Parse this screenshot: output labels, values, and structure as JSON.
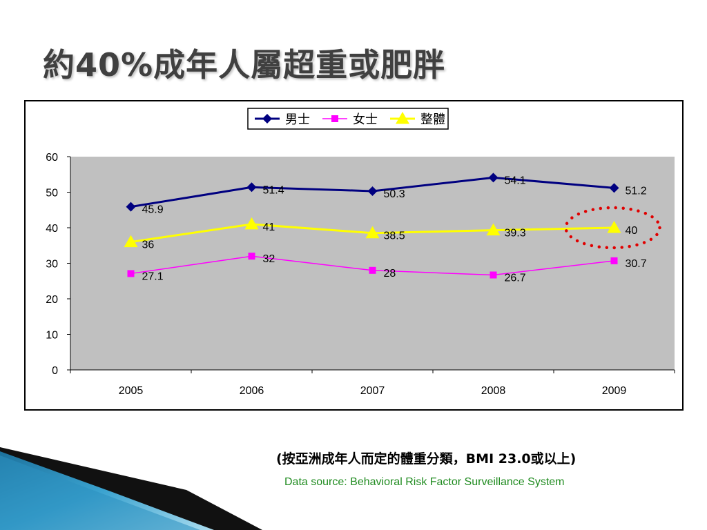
{
  "slide": {
    "title": "約40%成年人屬超重或肥胖",
    "subnote": "(按亞洲成年人而定的體重分類，BMI 23.0或以上)",
    "source": "Data source: Behavioral Risk Factor Surveillance System"
  },
  "chart_data": {
    "type": "line",
    "categories": [
      "2005",
      "2006",
      "2007",
      "2008",
      "2009"
    ],
    "ylim": [
      0,
      60
    ],
    "yticks": [
      0,
      10,
      20,
      30,
      40,
      50,
      60
    ],
    "grid": false,
    "plot_background": "#c0c0c0",
    "legend_position": "top-center",
    "series": [
      {
        "name": "男士",
        "values": [
          45.9,
          51.4,
          50.3,
          54.1,
          51.2
        ],
        "labels": [
          "45.9",
          "51.4",
          "50.3",
          "54.1",
          "51.2"
        ],
        "color": "#000080",
        "marker": "diamond"
      },
      {
        "name": "女士",
        "values": [
          27.1,
          32,
          28,
          26.7,
          30.7
        ],
        "labels": [
          "27.1",
          "32",
          "28",
          "26.7",
          "30.7"
        ],
        "color": "#ff00ff",
        "marker": "square"
      },
      {
        "name": "整體",
        "values": [
          36,
          41,
          38.5,
          39.3,
          40
        ],
        "labels": [
          "36",
          "41",
          "38.5",
          "39.3",
          "40"
        ],
        "color": "#ffff00",
        "marker": "triangle"
      }
    ],
    "annotation": {
      "shape": "dotted-ellipse",
      "color": "#e00000",
      "category": "2009",
      "series": "整體"
    }
  }
}
